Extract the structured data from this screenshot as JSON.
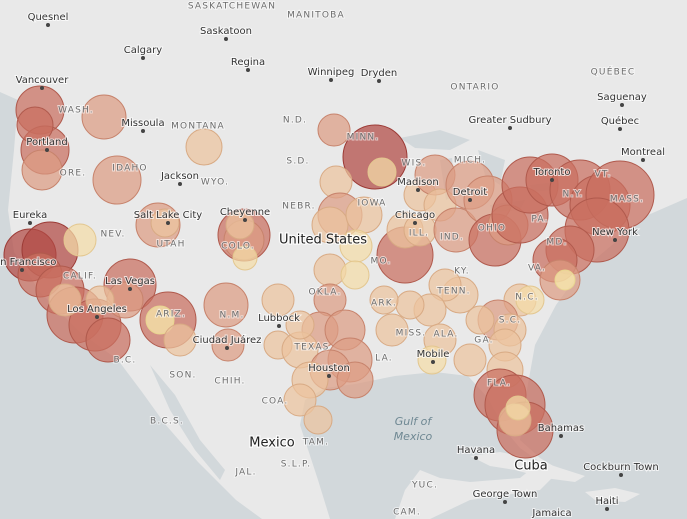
{
  "map": {
    "cities": [
      "Quesnel",
      "Calgary",
      "Saskatoon",
      "Regina",
      "Winnipeg",
      "Dryden",
      "Vancouver",
      "Missoula",
      "Portland",
      "Jackson",
      "Eureka",
      "Salt Lake City",
      "Cheyenne",
      "Madison",
      "Detroit",
      "Chicago",
      "Toronto",
      "New York",
      "San Francisco",
      "Las Vegas",
      "Los Angeles",
      "Lubbock",
      "Ciudad Juárez",
      "Houston",
      "Mobile",
      "Havana",
      "Cockburn Town",
      "George Town",
      "Haiti",
      "Jamaica",
      "Greater Sudbury",
      "Saguenay",
      "Québec",
      "Montreal",
      "Bahamas"
    ],
    "regions": [
      "SASKATCHEWAN",
      "MANITOBA",
      "ONTARIO",
      "QUÉBEC",
      "MONTANA",
      "N.D.",
      "S.D.",
      "WYO.",
      "IDAHO",
      "WASH.",
      "ORE.",
      "NEBR.",
      "IOWA",
      "MINN.",
      "WIS.",
      "MICH.",
      "NEV.",
      "UTAH",
      "COLO.",
      "CALIF.",
      "ARIZ.",
      "N.M.",
      "OKLA.",
      "TEXAS",
      "ARK.",
      "MISS.",
      "ALA.",
      "GA.",
      "TENN.",
      "KY.",
      "IND.",
      "ILL.",
      "OHIO",
      "MO.",
      "PA.",
      "N.Y.",
      "VT.",
      "MASS.",
      "MD.",
      "VA.",
      "N.C.",
      "S.C.",
      "FLA.",
      "LA.",
      "B.C.",
      "SON.",
      "CHIH.",
      "COA.",
      "B.C.S.",
      "TAM.",
      "S.L.P.",
      "JAL.",
      "YUC.",
      "CAM."
    ],
    "countries": [
      "United States",
      "Mexico",
      "Cuba"
    ],
    "water": [
      "Gulf of",
      "Mexico"
    ]
  }
}
